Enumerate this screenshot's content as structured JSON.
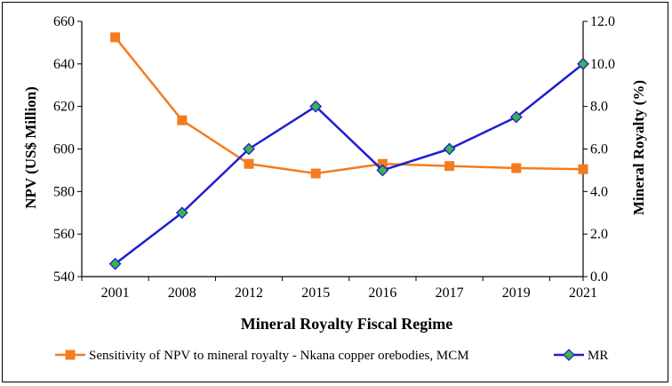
{
  "chart_data": {
    "type": "line",
    "categories": [
      "2001",
      "2008",
      "2012",
      "2015",
      "2016",
      "2017",
      "2019",
      "2021"
    ],
    "xlabel": "Mineral Royalty Fiscal Regime",
    "ylabel_left": "NPV (US$ Million)",
    "ylabel_right": "Mineral Royalty (%)",
    "ylim_left": [
      540,
      660
    ],
    "yticks_left": [
      "540",
      "560",
      "580",
      "600",
      "620",
      "640",
      "660"
    ],
    "ylim_right": [
      0,
      12
    ],
    "yticks_right": [
      "0.0",
      "2.0",
      "4.0",
      "6.0",
      "8.0",
      "10.0",
      "12.0"
    ],
    "legend_position": "bottom",
    "series": [
      {
        "name": "Sensitivity of NPV to mineral royalty - Nkana copper orebodies, MCM",
        "axis": "left",
        "color": "#F47C20",
        "marker": "square",
        "values": [
          652.5,
          613.5,
          593,
          588.5,
          593,
          592,
          591,
          590.5
        ]
      },
      {
        "name": "MR",
        "axis": "right",
        "color": "#1F1FD1",
        "marker_fill": "#39B54A",
        "marker": "diamond",
        "values": [
          0.6,
          3.0,
          6.0,
          8.0,
          5.0,
          6.0,
          7.5,
          10.0
        ]
      }
    ]
  }
}
